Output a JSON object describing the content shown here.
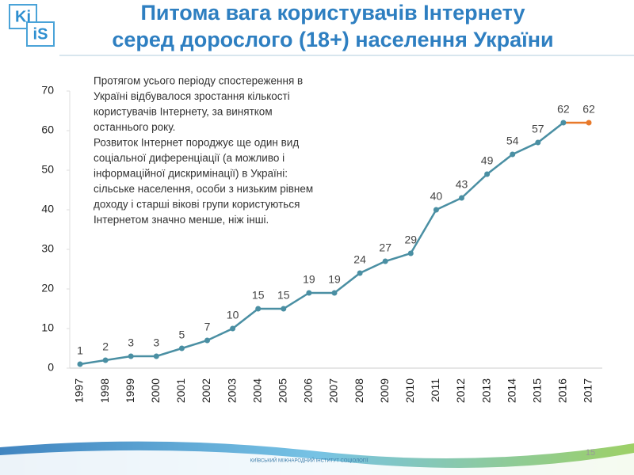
{
  "slide": {
    "logo_top": "Ki",
    "logo_bottom": "iS",
    "footer": "КИЇВСЬКИЙ МІЖНАРОДНИЙ ІНСТИТУТ СОЦІОЛОГІЇ",
    "page_number": "15"
  },
  "chart_data": {
    "type": "line",
    "title": [
      "Питома вага користувачів Інтернету",
      "серед дорослого (18+) населення України"
    ],
    "annotation": [
      "Протягом усього періоду спостереження в",
      "Україні відбувалося зростання кількості",
      "користувачів Інтернету, за винятком",
      "останнього року.",
      "Розвиток Інтернет породжує ще один вид",
      "соціальної диференціації (а можливо і",
      "інформаційної дискримінації) в Україні:",
      "сільське населення, особи з низьким рівнем",
      "доходу і старші вікові групи користуються",
      "Інтернетом значно менше, ніж інші."
    ],
    "categories": [
      "1997",
      "1998",
      "1999",
      "2000",
      "2001",
      "2002",
      "2003",
      "2004",
      "2005",
      "2006",
      "2007",
      "2008",
      "2009",
      "2010",
      "2011",
      "2012",
      "2013",
      "2014",
      "2015",
      "2016",
      "2017"
    ],
    "values": [
      1,
      2,
      3,
      3,
      5,
      7,
      10,
      15,
      15,
      19,
      19,
      24,
      27,
      29,
      40,
      43,
      49,
      54,
      57,
      62,
      62
    ],
    "color": "#4a8fa3",
    "last_segment_color": "#e8792a",
    "ylim": [
      0,
      70
    ],
    "yticks": [
      0,
      10,
      20,
      30,
      40,
      50,
      60,
      70
    ],
    "grid": false
  }
}
